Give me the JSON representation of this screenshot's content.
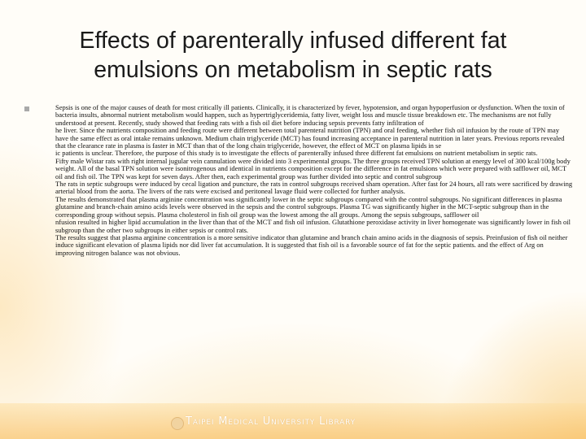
{
  "slide": {
    "title_lines": [
      "Effects of parenterally infused different fat",
      "emulsions on metabolism in septic rats"
    ],
    "body_lines": [
      "Sepsis is one of the major causes of death for most critically ill patients. Clinically, it is characterized by fever, hypotension, and organ hypoperfusion or dysfunction. When the toxin of bacteria insults, abnormal nutrient metabolism would happen, such as hypertriglyceridemia, fatty liver, weight loss and muscle tissue breakdown etc. The mechanisms are not fully understood at present. Recently, study showed that feeding rats with a fish oil diet before inducing sepsis prevents fatty infiltration of",
      "he liver. Since the nutrients composition and feeding route were different between total parenteral nutrition (TPN) and oral feeding, whether fish oil infusion by the route of TPN may have the same effect as oral intake remains unknown. Medium chain triglyceride (MCT) has found increasing acceptance in parenteral nutrition in later years. Previous reports revealed that the clearance rate in plasma is faster in MCT than that of the long chain triglyceride, however, the effect of MCT on plasma lipids in se",
      "ic patients is unclear. Therefore, the purpose of this study is to investigate the effects of parenterally infused three different fat emulsions on nutrient metabolism in septic rats.",
      "Fifty male Wistar rats with right internal jugular vein cannulation were divided into 3 experimental groups. The three groups received TPN solution at energy level of 300 kcal/100g body weight. All of the basal TPN solution were isonitrogenous and identical in nutrients composition except for the difference in fat emulsions which were prepared with safflower oil, MCT oil and fish oil. The TPN was kept for seven days. After then, each experimental group was further divided into septic and control subgroup",
      "The rats in septic subgroups were induced by cecal ligation and puncture, the rats in control subgroups received sham operation. After fast for 24 hours, all rats were sacrificed by drawing arterial blood from the aorta. The livers of the rats were excised and peritoneal lavage fluid were collected for further analysis.",
      "The results demonstrated that plasma arginine concentration was significantly lower in the septic subgroups compared with the control subgroups. No significant differences in plasma glutamine and branch-chain amino acids levels were observed in the sepsis and the control subgroups. Plasma TG was significantly higher in the MCT-septic subgroup than in the corresponding group without sepsis. Plasma cholesterol in fish oil group was the lowest among the all groups. Among the sepsis subgroups, safflower oil",
      "nfusion resulted in higher lipid accumulation in the liver than that of the MCT and fish oil infusion. Glutathione peroxidase activity in liver homogenate was significantly lower in fish oil subgroup than the other two subgroups in either sepsis or control rats.",
      "The results suggest that plasma arginine concentration is a more sensitive indicator than glutamine and branch chain amino acids in the diagnosis of sepsis. Preinfusion of fish oil neither induce significant elevation of plasma lipids nor did liver fat accumulation. It is suggested that fish oil is a favorable source of fat for the septic patients. and the effect of Arg on improving nitrogen balance was not obvious."
    ],
    "footer_text": "Taipei Medical University Library"
  },
  "colors": {
    "accent_bar": "#f9c46e",
    "bullet": "#a9a9a9"
  },
  "icons": {
    "bullet": "square-bullet-icon",
    "footer_logo": "university-seal-icon"
  }
}
